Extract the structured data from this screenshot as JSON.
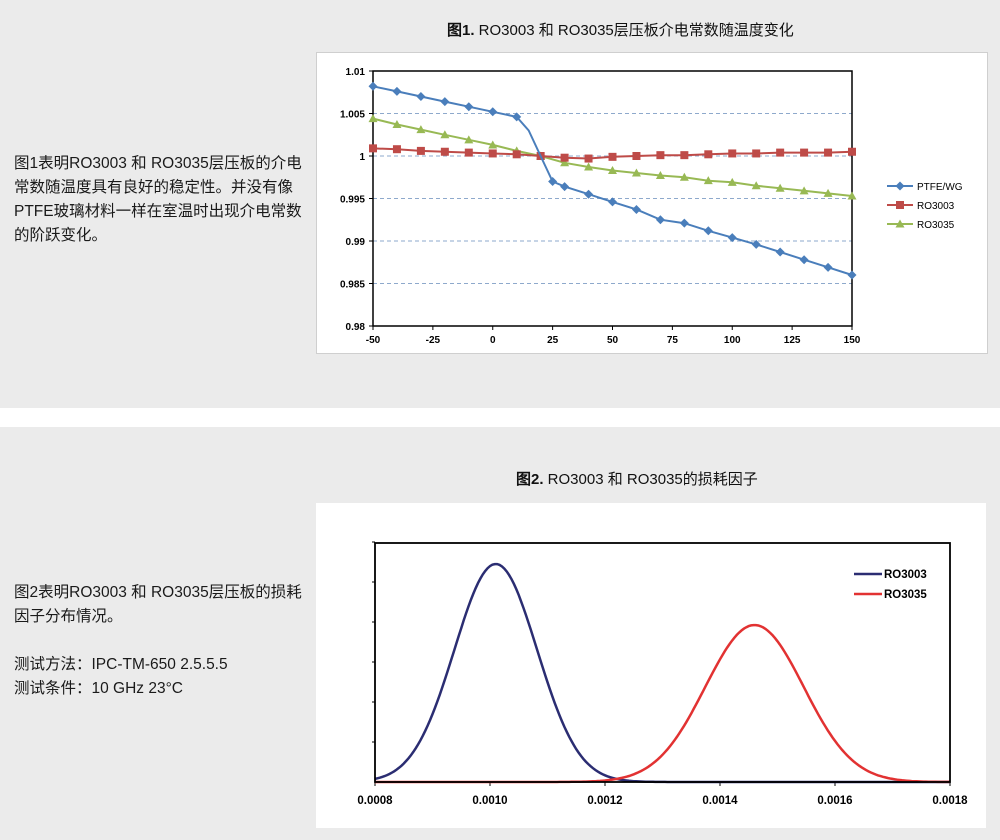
{
  "figure1": {
    "title_bold": "图1.",
    "title_rest": " RO3003 和 RO3035层压板介电常数随温度变化",
    "description": "图1表明RO3003 和 RO3035层压板的介电常数随温度具有良好的稳定性。并没有像PTFE玻璃材料一样在室温时出现介电常数的阶跃变化。"
  },
  "figure2": {
    "title_bold": "图2.",
    "title_rest": " RO3003 和 RO3035的损耗因子",
    "description": "图2表明RO3003 和 RO3035层压板的损耗因子分布情况。",
    "method": "测试方法：IPC-TM-650 2.5.5.5",
    "conditions": "测试条件：10 GHz 23°C"
  },
  "chart_data": [
    {
      "type": "line",
      "title": "",
      "xlabel": "",
      "ylabel": "",
      "xlim": [
        -50,
        150
      ],
      "ylim": [
        0.98,
        1.01
      ],
      "x_ticks": [
        "-50",
        "-25",
        "0",
        "25",
        "50",
        "75",
        "100",
        "125",
        "150"
      ],
      "x_tick_values": [
        -50,
        -25,
        0,
        25,
        50,
        75,
        100,
        125,
        150
      ],
      "y_ticks": [
        "0.98",
        "0.985",
        "0.99",
        "0.995",
        "1",
        "1.005",
        "1.01"
      ],
      "y_tick_values": [
        0.98,
        0.985,
        0.99,
        0.995,
        1.0,
        1.005,
        1.01
      ],
      "grid": "horizontal dashed",
      "legend_position": "right",
      "series": [
        {
          "name": "PTFE/WG",
          "color": "#4a7ebb",
          "marker": "diamond",
          "x": [
            -50,
            -40,
            -30,
            -20,
            -10,
            0,
            10,
            15,
            20,
            25,
            30,
            40,
            50,
            60,
            70,
            80,
            90,
            100,
            110,
            120,
            130,
            140,
            150
          ],
          "y": [
            1.0082,
            1.0076,
            1.007,
            1.0064,
            1.0058,
            1.0052,
            1.0046,
            1.003,
            1.0,
            0.997,
            0.9964,
            0.9955,
            0.9946,
            0.9937,
            0.9925,
            0.9921,
            0.9912,
            0.9904,
            0.9896,
            0.9887,
            0.9878,
            0.9869,
            0.986
          ]
        },
        {
          "name": "RO3003",
          "color": "#be4b48",
          "marker": "square",
          "x": [
            -50,
            -40,
            -30,
            -20,
            -10,
            0,
            10,
            20,
            30,
            40,
            50,
            60,
            70,
            80,
            90,
            100,
            110,
            120,
            130,
            140,
            150
          ],
          "y": [
            1.0009,
            1.0008,
            1.0006,
            1.0005,
            1.0004,
            1.0003,
            1.0002,
            1.0,
            0.9998,
            0.9997,
            0.9999,
            1.0,
            1.0001,
            1.0001,
            1.0002,
            1.0003,
            1.0003,
            1.0004,
            1.0004,
            1.0004,
            1.0005
          ]
        },
        {
          "name": "RO3035",
          "color": "#98b954",
          "marker": "triangle",
          "x": [
            -50,
            -40,
            -30,
            -20,
            -10,
            0,
            10,
            20,
            30,
            40,
            50,
            60,
            70,
            80,
            90,
            100,
            110,
            120,
            130,
            140,
            150
          ],
          "y": [
            1.0044,
            1.0037,
            1.0031,
            1.0025,
            1.0019,
            1.0013,
            1.0006,
            1.0,
            0.9992,
            0.9987,
            0.9983,
            0.998,
            0.9977,
            0.9975,
            0.9971,
            0.9969,
            0.9965,
            0.9962,
            0.9959,
            0.9956,
            0.9953
          ]
        }
      ]
    },
    {
      "type": "line",
      "title": "",
      "xlabel": "",
      "ylabel": "",
      "xlim": [
        0.0008,
        0.0018
      ],
      "x_ticks": [
        "0.0008",
        "0.0010",
        "0.0012",
        "0.0014",
        "0.0016",
        "0.0018"
      ],
      "x_tick_values": [
        0.0008,
        0.001,
        0.0012,
        0.0014,
        0.0016,
        0.0018
      ],
      "y_axis_unlabeled": true,
      "grid": "none",
      "legend_position": "top-right",
      "series": [
        {
          "name": "RO3003",
          "color": "#2b2d72",
          "shape": "bell",
          "peak_x": 0.00101,
          "sigma": 7.2e-05,
          "relative_peak": 1.0
        },
        {
          "name": "RO3035",
          "color": "#e23232",
          "shape": "bell",
          "peak_x": 0.00146,
          "sigma": 8.55e-05,
          "relative_peak": 0.72
        }
      ]
    }
  ]
}
